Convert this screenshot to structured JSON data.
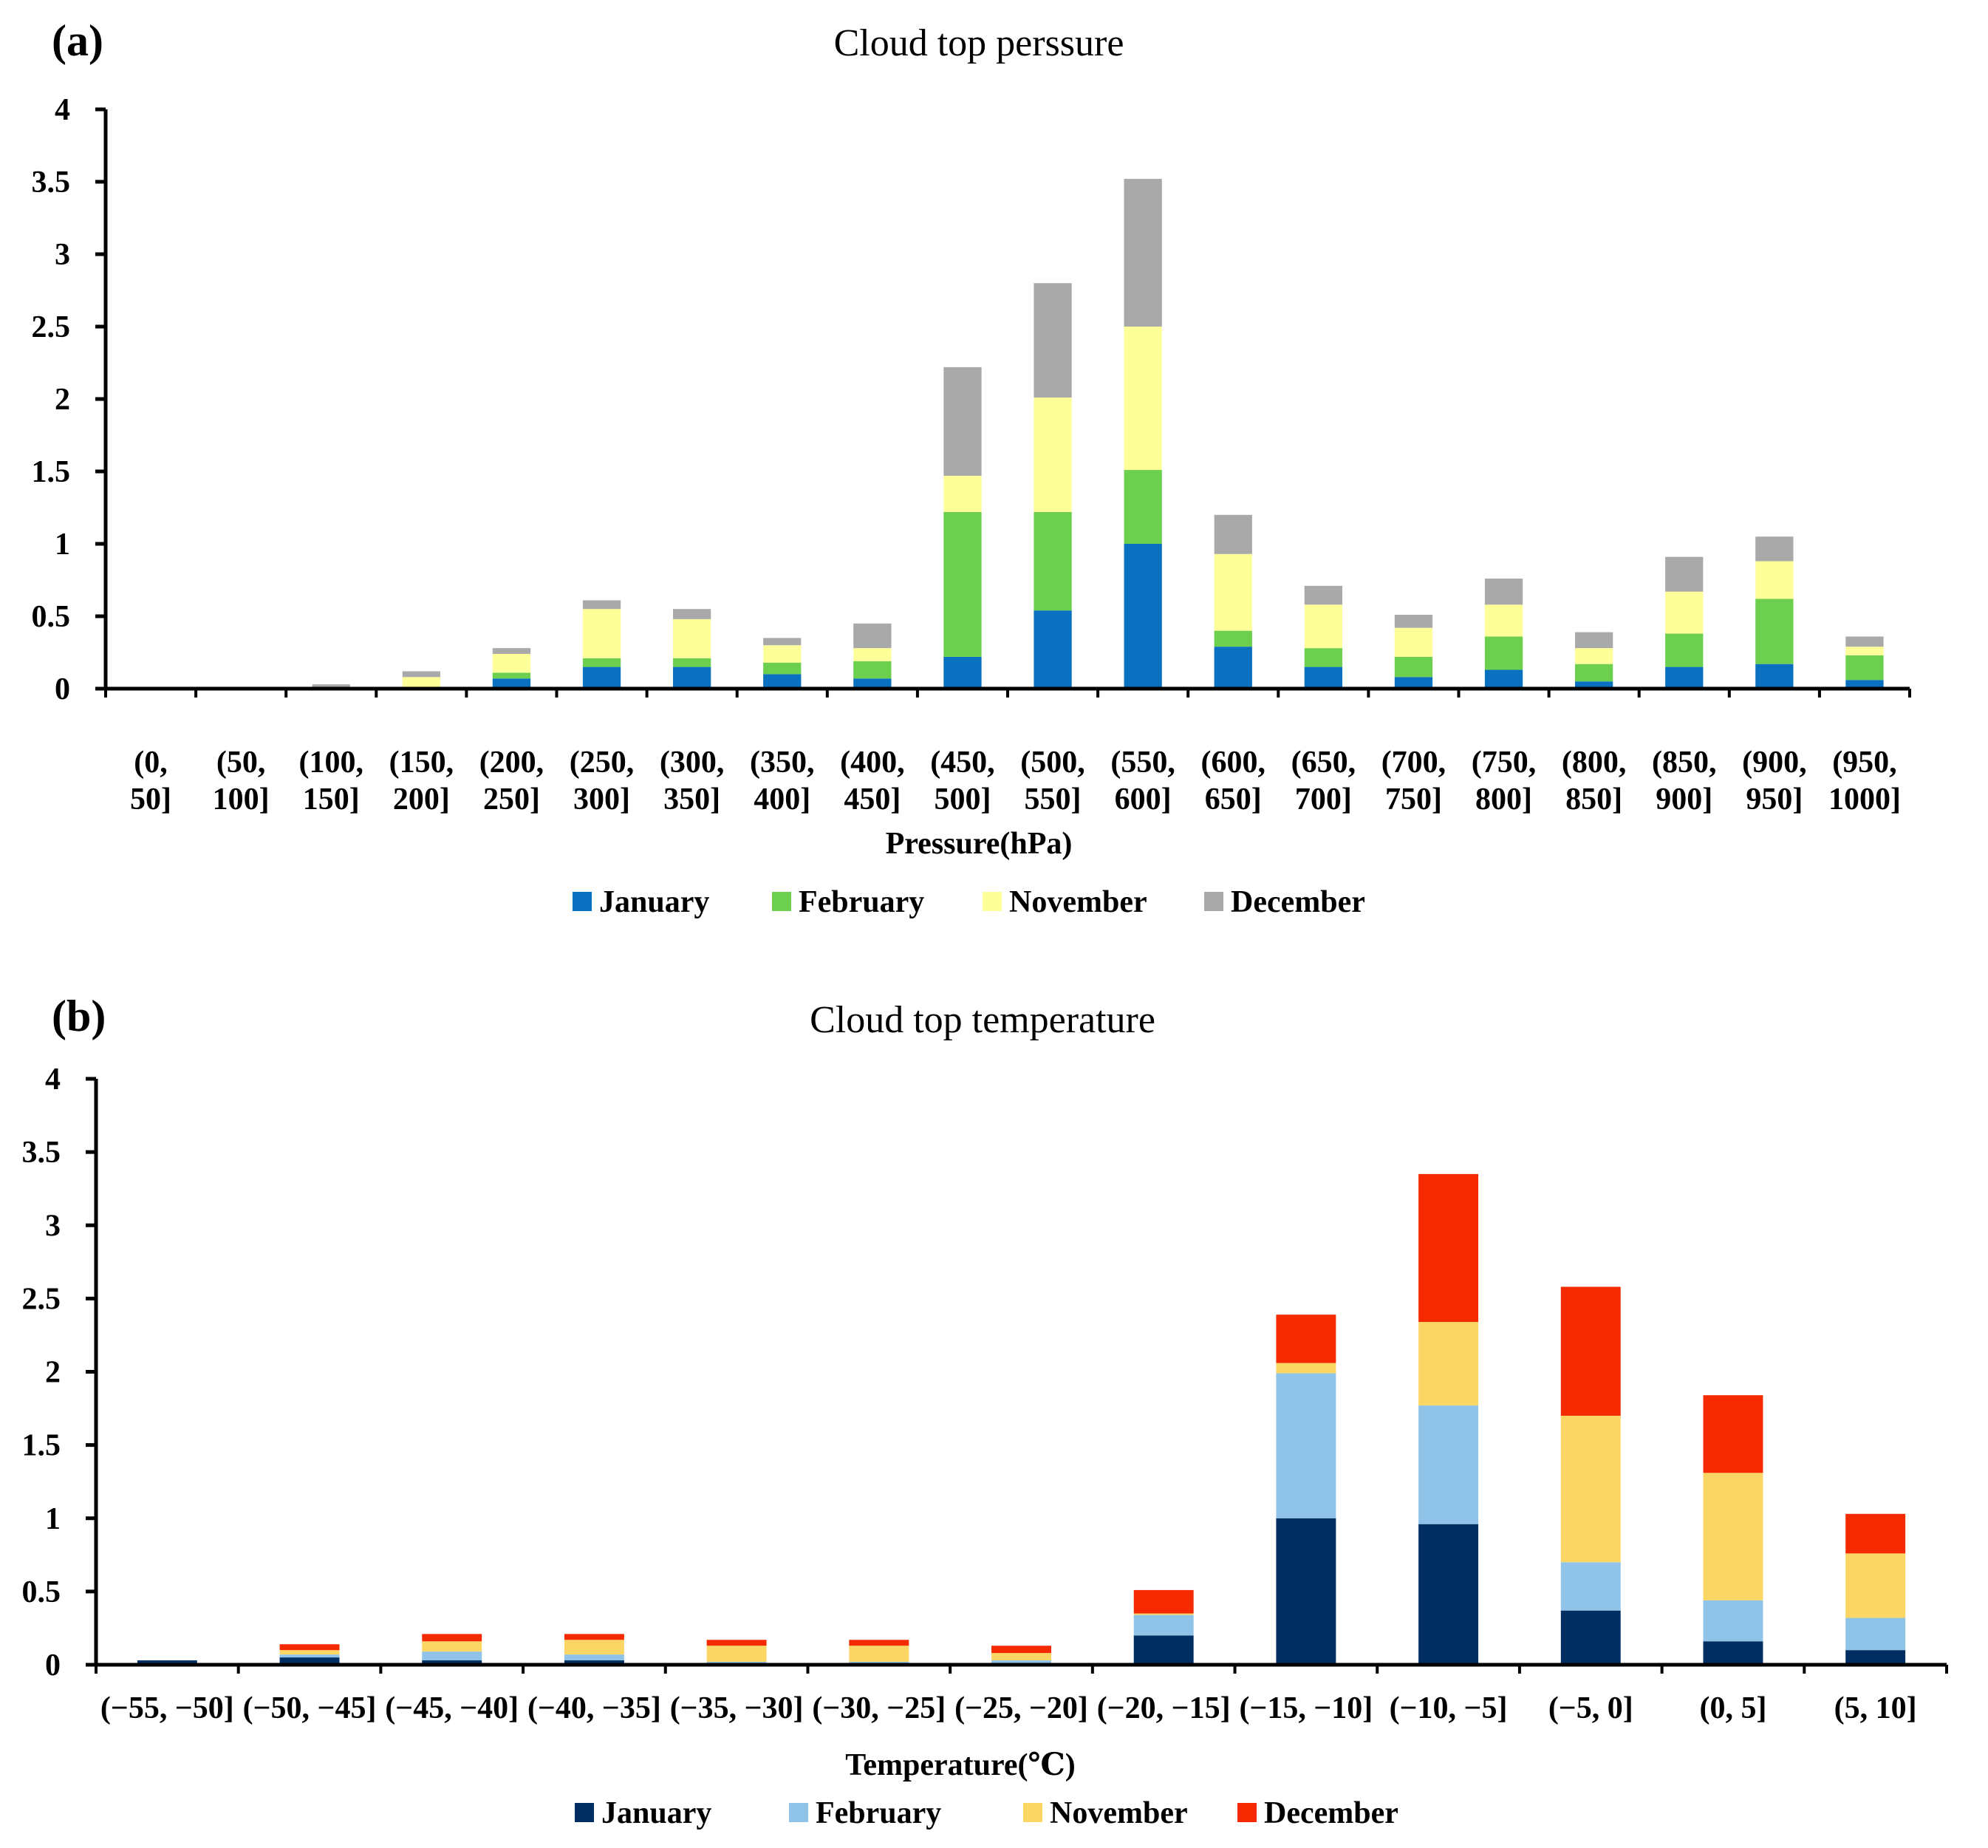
{
  "chart_data": [
    {
      "panel": "(a)",
      "type": "bar",
      "stacked": true,
      "title": "Cloud top perssure",
      "xlabel": "Pressure(hPa)",
      "ylabel": "",
      "ylim": [
        0,
        4
      ],
      "yticks": [
        "0",
        "0.5",
        "1",
        "1.5",
        "2",
        "2.5",
        "3",
        "3.5",
        "4"
      ],
      "categories": [
        [
          "(0,",
          "50]"
        ],
        [
          "(50,",
          "100]"
        ],
        [
          "(100,",
          "150]"
        ],
        [
          "(150,",
          "200]"
        ],
        [
          "(200,",
          "250]"
        ],
        [
          "(250,",
          "300]"
        ],
        [
          "(300,",
          "350]"
        ],
        [
          "(350,",
          "400]"
        ],
        [
          "(400,",
          "450]"
        ],
        [
          "(450,",
          "500]"
        ],
        [
          "(500,",
          "550]"
        ],
        [
          "(550,",
          "600]"
        ],
        [
          "(600,",
          "650]"
        ],
        [
          "(650,",
          "700]"
        ],
        [
          "(700,",
          "750]"
        ],
        [
          "(750,",
          "800]"
        ],
        [
          "(800,",
          "850]"
        ],
        [
          "(850,",
          "900]"
        ],
        [
          "(900,",
          "950]"
        ],
        [
          "(950,",
          "1000]"
        ]
      ],
      "series": [
        {
          "name": "January",
          "color": "#0A70C0",
          "values": [
            0,
            0,
            0,
            0.005,
            0.07,
            0.15,
            0.15,
            0.1,
            0.07,
            0.22,
            0.54,
            1.0,
            0.29,
            0.15,
            0.08,
            0.13,
            0.05,
            0.15,
            0.17,
            0.06
          ]
        },
        {
          "name": "February",
          "color": "#6CD04E",
          "values": [
            0,
            0,
            0,
            0.005,
            0.04,
            0.06,
            0.06,
            0.08,
            0.12,
            1.0,
            0.68,
            0.51,
            0.11,
            0.13,
            0.14,
            0.23,
            0.12,
            0.23,
            0.45,
            0.17
          ]
        },
        {
          "name": "November",
          "color": "#FFFF99",
          "values": [
            0,
            0,
            0.01,
            0.07,
            0.13,
            0.34,
            0.27,
            0.12,
            0.09,
            0.25,
            0.79,
            0.99,
            0.53,
            0.3,
            0.2,
            0.22,
            0.11,
            0.29,
            0.26,
            0.06
          ]
        },
        {
          "name": "December",
          "color": "#A9A9A9",
          "values": [
            0,
            0,
            0.02,
            0.04,
            0.04,
            0.06,
            0.07,
            0.05,
            0.17,
            0.75,
            0.79,
            1.02,
            0.27,
            0.13,
            0.09,
            0.18,
            0.11,
            0.24,
            0.17,
            0.07
          ]
        }
      ]
    },
    {
      "panel": "(b)",
      "type": "bar",
      "stacked": true,
      "title": "Cloud top temperature",
      "xlabel": "Temperature(℃)",
      "ylabel": "",
      "ylim": [
        0,
        4
      ],
      "yticks": [
        "0",
        "0.5",
        "1",
        "1.5",
        "2",
        "2.5",
        "3",
        "3.5",
        "4"
      ],
      "categories": [
        [
          "(−55, −50]"
        ],
        [
          "(−50, −45]"
        ],
        [
          "(−45, −40]"
        ],
        [
          "(−40, −35]"
        ],
        [
          "(−35, −30]"
        ],
        [
          "(−30, −25]"
        ],
        [
          "(−25, −20]"
        ],
        [
          "(−20, −15]"
        ],
        [
          "(−15, −10]"
        ],
        [
          "(−10, −5]"
        ],
        [
          "(−5, 0]"
        ],
        [
          "(0, 5]"
        ],
        [
          "(5, 10]"
        ]
      ],
      "series": [
        {
          "name": "January",
          "color": "#002D62",
          "values": [
            0.03,
            0.05,
            0.03,
            0.03,
            0.01,
            0.01,
            0.01,
            0.2,
            1.0,
            0.96,
            0.37,
            0.16,
            0.1
          ]
        },
        {
          "name": "February",
          "color": "#8FC4E8",
          "values": [
            0.0,
            0.02,
            0.06,
            0.04,
            0.01,
            0.01,
            0.02,
            0.14,
            0.99,
            0.81,
            0.33,
            0.28,
            0.22
          ]
        },
        {
          "name": "November",
          "color": "#FCD665",
          "values": [
            0.0,
            0.03,
            0.07,
            0.1,
            0.11,
            0.11,
            0.05,
            0.01,
            0.07,
            0.57,
            1.0,
            0.87,
            0.44
          ]
        },
        {
          "name": "December",
          "color": "#F52A00",
          "values": [
            0.0,
            0.04,
            0.05,
            0.04,
            0.04,
            0.04,
            0.05,
            0.16,
            0.33,
            1.01,
            0.88,
            0.53,
            0.27
          ]
        }
      ]
    }
  ]
}
